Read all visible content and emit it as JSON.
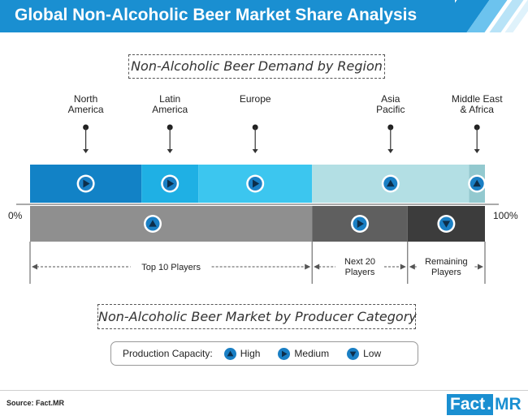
{
  "header": {
    "title": "Global Non-Alcoholic Beer Market Share Analysis"
  },
  "chart_data": [
    {
      "type": "stacked-bar",
      "title": "Non-Alcoholic Beer Demand by Region",
      "segments": [
        {
          "label": "North America",
          "share": 24.5,
          "trend": "Medium",
          "color": "#1282c6"
        },
        {
          "label": "Latin America",
          "share": 12.5,
          "trend": "Medium",
          "color": "#1fb0e4"
        },
        {
          "label": "Europe",
          "share": 25.0,
          "trend": "Medium",
          "color": "#3cc6ef"
        },
        {
          "label": "Asia Pacific",
          "share": 34.5,
          "trend": "High",
          "color": "#b3dfe4"
        },
        {
          "label": "Middle East & Africa",
          "share": 3.5,
          "trend": "High",
          "color": "#93c9cf"
        }
      ]
    },
    {
      "type": "stacked-bar",
      "title": "Non-Alcoholic Beer Market by Producer Category",
      "segments": [
        {
          "label": "Top 10 Players",
          "share": 62.0,
          "capacity": "High",
          "color": "#8f8f8f"
        },
        {
          "label": "Next 20 Players",
          "share": 21.0,
          "capacity": "Medium",
          "color": "#5f5f5f"
        },
        {
          "label": "Remaining Players",
          "share": 17.0,
          "capacity": "Low",
          "color": "#3c3c3c"
        }
      ]
    }
  ],
  "axis": {
    "min_label": "0%",
    "max_label": "100%"
  },
  "region_labels": [
    {
      "lines": [
        "North",
        "America"
      ]
    },
    {
      "lines": [
        "Latin",
        "America"
      ]
    },
    {
      "lines": [
        "Europe"
      ]
    },
    {
      "lines": [
        "Asia",
        "Pacific"
      ]
    },
    {
      "lines": [
        "Middle East",
        "& Africa"
      ]
    }
  ],
  "producer_labels": [
    {
      "lines": [
        "Top 10 Players"
      ]
    },
    {
      "lines": [
        "Next 20",
        "Players"
      ]
    },
    {
      "lines": [
        "Remaining",
        "Players"
      ]
    }
  ],
  "legend": {
    "title": "Production Capacity:",
    "items": [
      {
        "label": "High",
        "icon": "triangle-up-icon"
      },
      {
        "label": "Medium",
        "icon": "triangle-right-icon"
      },
      {
        "label": "Low",
        "icon": "triangle-down-icon"
      }
    ]
  },
  "footer": {
    "source": "Source: Fact.MR",
    "logo_fact": "Fact",
    "logo_dot": ".",
    "logo_mr": "MR"
  },
  "colors": {
    "brand": "#1a8fd1",
    "icon": "#1a7fc4"
  }
}
